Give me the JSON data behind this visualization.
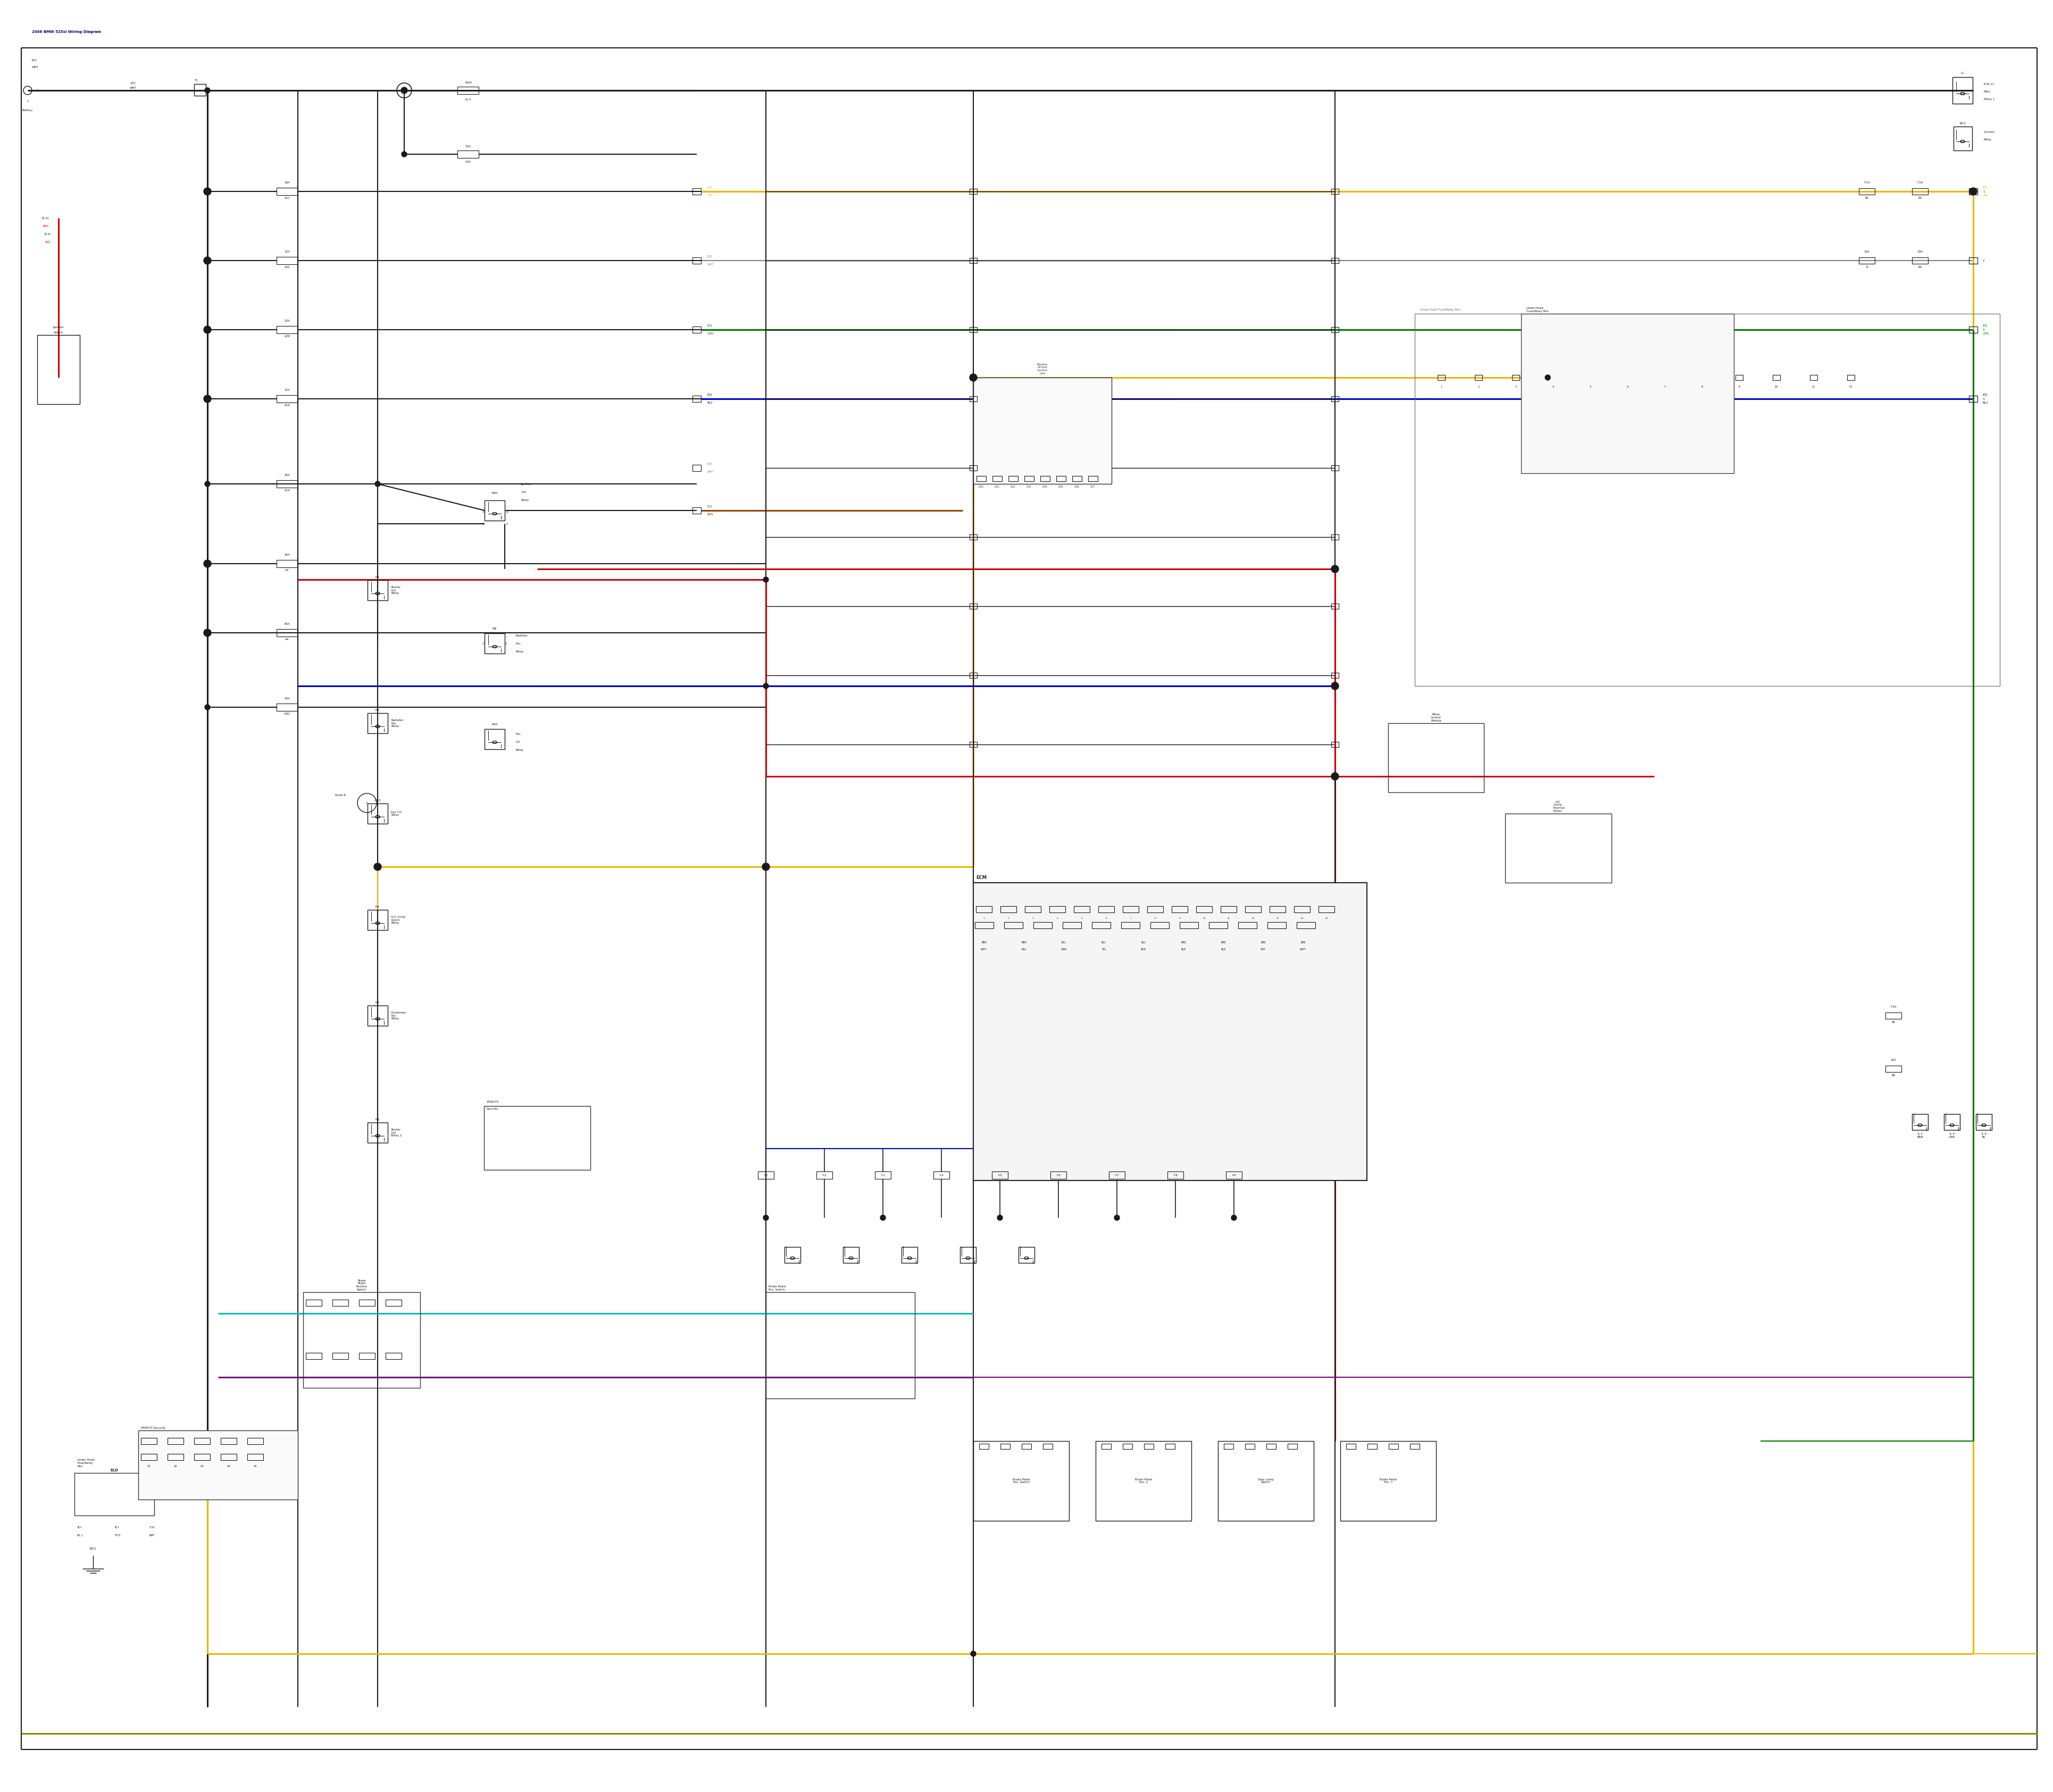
{
  "bg_color": "#ffffff",
  "fig_width": 38.4,
  "fig_height": 33.5,
  "wire_colors": {
    "black": "#1a1a1a",
    "red": "#cc0000",
    "blue": "#0000cc",
    "yellow": "#e6b800",
    "green": "#007700",
    "cyan": "#00bbbb",
    "purple": "#770077",
    "dark_yellow": "#888800",
    "gray": "#888888",
    "white_wire": "#aaaaaa",
    "brown": "#884400"
  },
  "lw": 1.5,
  "lw2": 2.2,
  "lw3": 3.0,
  "fs": 5.0,
  "fs2": 4.0,
  "fs3": 6.0
}
